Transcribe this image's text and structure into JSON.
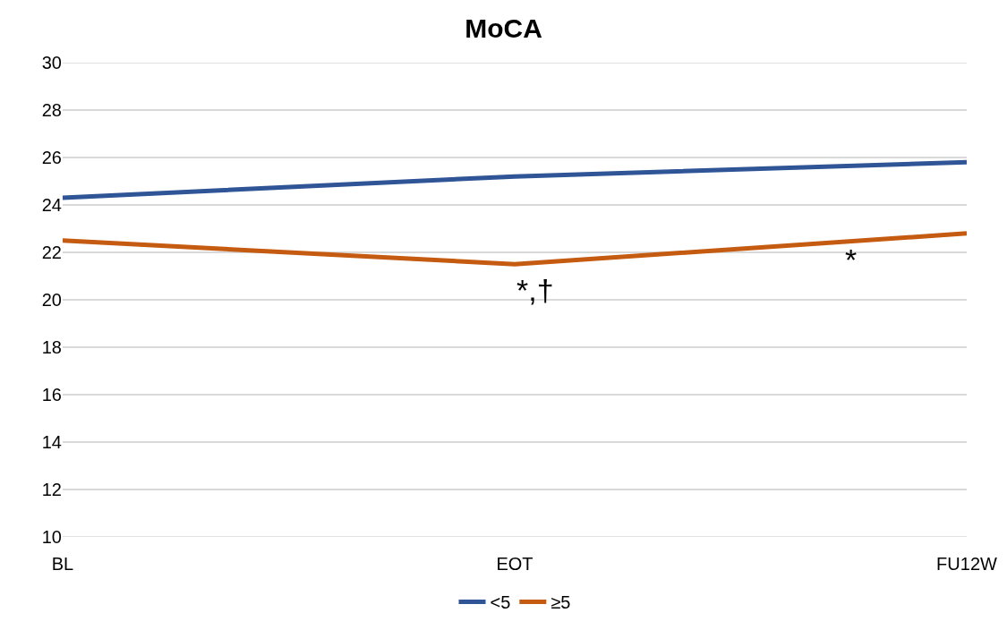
{
  "chart_data": {
    "type": "line",
    "title": "MoCA",
    "categories": [
      "BL",
      "EOT",
      "FU12W"
    ],
    "series": [
      {
        "name": "<5",
        "color": "#2f5597",
        "values": [
          24.3,
          25.2,
          25.8
        ]
      },
      {
        "name": "≥5",
        "color": "#c55a11",
        "values": [
          22.5,
          21.5,
          22.8
        ]
      }
    ],
    "ylim": [
      10,
      30
    ],
    "yticks": [
      10,
      12,
      14,
      16,
      18,
      20,
      22,
      24,
      26,
      28,
      30
    ],
    "grid": "y",
    "legend": "bottom",
    "marker": "none",
    "line_style": "solid",
    "annotations": [
      "*,†",
      "*"
    ]
  }
}
